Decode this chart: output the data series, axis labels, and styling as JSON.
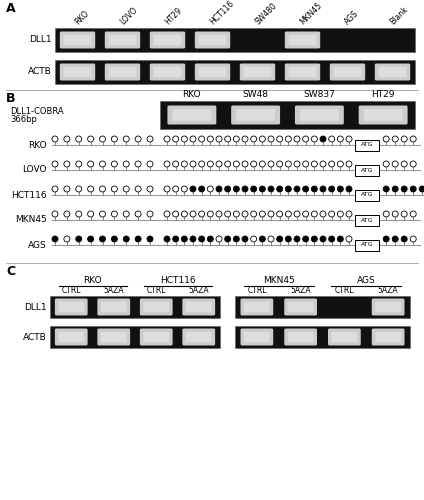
{
  "panel_A": {
    "samples": [
      "RKO",
      "LOVO",
      "HT29",
      "HCT116",
      "SW480",
      "MKN45",
      "AGS",
      "Blank"
    ],
    "DLL1_bands": [
      true,
      true,
      true,
      true,
      false,
      true,
      false,
      false
    ],
    "ACTB_bands": [
      true,
      true,
      true,
      true,
      true,
      true,
      true,
      true
    ],
    "bg_color": "#111111",
    "band_color": "#cccccc"
  },
  "panel_B": {
    "cobra_samples": [
      "RKO",
      "SW48",
      "SW837",
      "HT29"
    ],
    "bg_color": "#111111",
    "band_color": "#bbbbbb",
    "bisulfite_cells": [
      "RKO",
      "LOVO",
      "HCT116",
      "MKN45",
      "AGS"
    ],
    "RKO_cpg": [
      0,
      0,
      0,
      0,
      0,
      0,
      0,
      0,
      0,
      0,
      0,
      0,
      0,
      0,
      0,
      0,
      0,
      0,
      0,
      0,
      0,
      0,
      0,
      0,
      0,
      0,
      0,
      1,
      0,
      0,
      0
    ],
    "LOVO_cpg": [
      0,
      0,
      0,
      0,
      0,
      0,
      0,
      0,
      0,
      0,
      0,
      0,
      0,
      0,
      0,
      0,
      0,
      0,
      0,
      0,
      0,
      0,
      0,
      0,
      0,
      0,
      0,
      0,
      0,
      0,
      0
    ],
    "HCT116_cpg": [
      0,
      0,
      0,
      0,
      0,
      0,
      0,
      0,
      0,
      0,
      0,
      0,
      1,
      1,
      0,
      1,
      1,
      1,
      1,
      1,
      1,
      1,
      1,
      1,
      1,
      1,
      1,
      1,
      1,
      1,
      1
    ],
    "MKN45_cpg": [
      0,
      0,
      0,
      0,
      0,
      0,
      0,
      0,
      0,
      0,
      0,
      0,
      0,
      0,
      0,
      0,
      0,
      0,
      0,
      0,
      0,
      0,
      0,
      0,
      0,
      0,
      0,
      0,
      0,
      0,
      0
    ],
    "AGS_cpg": [
      1,
      0,
      1,
      1,
      1,
      1,
      1,
      1,
      1,
      1,
      1,
      1,
      1,
      1,
      1,
      0,
      1,
      1,
      1,
      0,
      1,
      0,
      1,
      1,
      1,
      1,
      1,
      1,
      1,
      1,
      0
    ],
    "RKO_post": [
      0,
      0,
      0,
      0
    ],
    "LOVO_post": [
      0,
      0,
      0,
      0
    ],
    "HCT116_post": [
      1,
      1,
      1,
      1,
      1
    ],
    "MKN45_post": [
      0,
      0,
      0,
      0
    ],
    "AGS_post": [
      1,
      1,
      1,
      0
    ]
  },
  "panel_C": {
    "groups": [
      "RKO",
      "HCT116",
      "MKN45",
      "AGS"
    ],
    "DLL1_bands": [
      [
        true,
        true
      ],
      [
        true,
        true
      ],
      [
        true,
        true
      ],
      [
        false,
        true
      ]
    ],
    "ACTB_bands": [
      [
        true,
        true
      ],
      [
        true,
        true
      ],
      [
        true,
        true
      ],
      [
        true,
        true
      ]
    ],
    "bg_color": "#111111",
    "band_color": "#cccccc"
  }
}
